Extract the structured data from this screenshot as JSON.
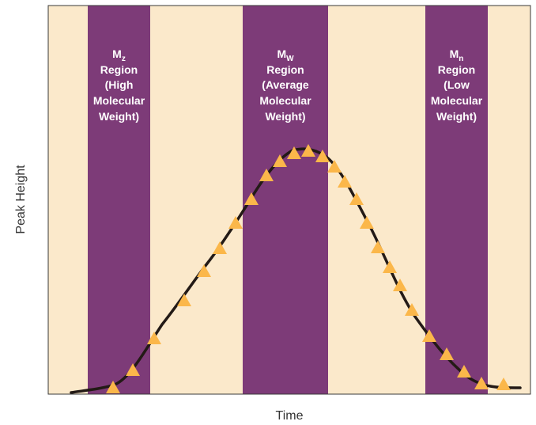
{
  "colors": {
    "background_band": "#fbe9cb",
    "region_band": "#7d3b78",
    "curve": "#231a16",
    "marker": "#fbb74a",
    "frame": "#3a3a3a",
    "region_text": "#ffffff"
  },
  "axes": {
    "xlabel": "Time",
    "ylabel": "Peak Height"
  },
  "regions": [
    {
      "symbol": "M",
      "subscript": "z",
      "lines": [
        "Region",
        "(High",
        "Molecular",
        "Weight)"
      ]
    },
    {
      "symbol": "M",
      "subscript": "W",
      "lines": [
        "Region",
        "(Average",
        "Molecular",
        "Weight)"
      ]
    },
    {
      "symbol": "M",
      "subscript": "n",
      "lines": [
        "Region",
        "(Low",
        "Molecular",
        "Weight)"
      ]
    }
  ],
  "marker_icon": "triangle-marker-icon"
}
